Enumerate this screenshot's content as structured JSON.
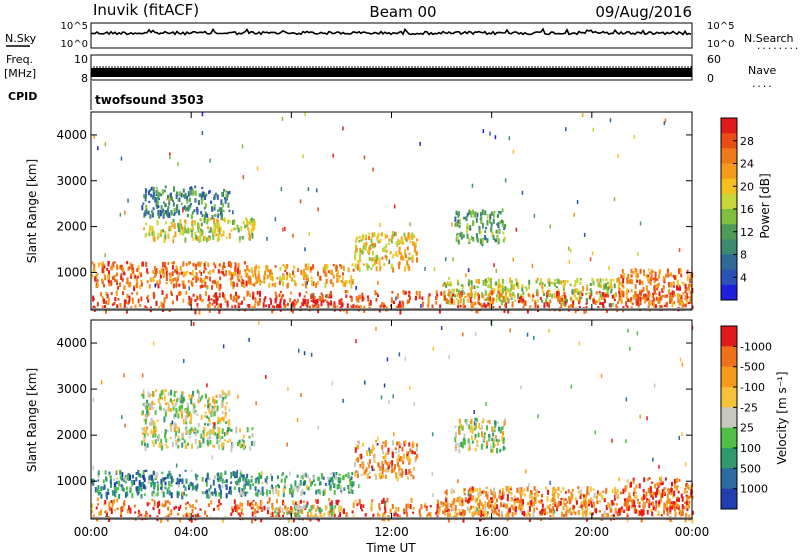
{
  "header": {
    "station": "Inuvik (fitACF)",
    "beam": "Beam 00",
    "date": "09/Aug/2016"
  },
  "status_panels": {
    "nsky_label": "N.Sky",
    "nsky_ticks": [
      "10^5",
      "10^0"
    ],
    "nsearch_label": "N.Search",
    "nsearch_ticks": [
      "10^5",
      "10^0"
    ],
    "freq_label": "Freq.",
    "freq_unit": "[MHz]",
    "freq_ticks": [
      "10",
      "8"
    ],
    "nave_label": "Nave",
    "nave_ticks": [
      "60",
      "0"
    ],
    "cpid_label": "CPID",
    "cpid_value": "twofsound 3503",
    "dotted_marker": "........",
    "dotted_marker_short": "...."
  },
  "chart_data": [
    {
      "type": "heatmap",
      "panel": "power",
      "ylabel": "Slant Range [km]",
      "yticks": [
        "1000",
        "2000",
        "3000",
        "4000"
      ],
      "ylim": [
        180,
        4500
      ],
      "xlim_hours": [
        0,
        24
      ],
      "colorbar_label": "Power [dB]",
      "colorbar_ticks": [
        "4",
        "8",
        "12",
        "16",
        "20",
        "24",
        "28"
      ],
      "colorbar_colors": [
        "#1f1fe0",
        "#2a52b8",
        "#2f6a96",
        "#3d8a70",
        "#4f9d55",
        "#7fbf3f",
        "#c8d63a",
        "#f3c01e",
        "#f59a1b",
        "#f07a18",
        "#e84d16",
        "#e31a1c"
      ],
      "scatter_regions": [
        {
          "t0": 0.0,
          "t1": 6.2,
          "r0": 700,
          "r1": 1250,
          "level": 9
        },
        {
          "t0": 6.2,
          "t1": 10.5,
          "r0": 750,
          "r1": 1200,
          "level": 8
        },
        {
          "t0": 2.0,
          "t1": 6.5,
          "r0": 1750,
          "r1": 2200,
          "level": 6
        },
        {
          "t0": 2.0,
          "t1": 5.5,
          "r0": 2250,
          "r1": 2900,
          "level": 3
        },
        {
          "t0": 10.5,
          "t1": 13.0,
          "r0": 1100,
          "r1": 1900,
          "level": 7
        },
        {
          "t0": 14.5,
          "t1": 16.5,
          "r0": 1700,
          "r1": 2400,
          "level": 4
        },
        {
          "t0": 14.0,
          "t1": 21.0,
          "r0": 400,
          "r1": 900,
          "level": 6
        },
        {
          "t0": 0.0,
          "t1": 24.0,
          "r0": 200,
          "r1": 620,
          "level": 10
        },
        {
          "t0": 7.0,
          "t1": 10.0,
          "r0": 250,
          "r1": 450,
          "level": 11
        },
        {
          "t0": 21.0,
          "t1": 24.0,
          "r0": 350,
          "r1": 1100,
          "level": 9
        }
      ]
    },
    {
      "type": "heatmap",
      "panel": "velocity",
      "ylabel": "Slant Range [km]",
      "yticks": [
        "1000",
        "2000",
        "3000",
        "4000"
      ],
      "ylim": [
        180,
        4500
      ],
      "xlim_hours": [
        0,
        24
      ],
      "xlabel": "Time UT",
      "xticks": [
        "00:00",
        "04:00",
        "08:00",
        "12:00",
        "16:00",
        "20:00",
        "00:00"
      ],
      "colorbar_label": "Velocity [m s⁻¹]",
      "colorbar_ticks": [
        "1000",
        "500",
        "100",
        "25",
        "-25",
        "-100",
        "-500",
        "-1000"
      ],
      "colorbar_colors": [
        "#1f3fb0",
        "#2d6aa0",
        "#2f9a6e",
        "#4fbf46",
        "#c8c8c0",
        "#f5c23a",
        "#f59a1b",
        "#f0701c",
        "#e31a1c"
      ],
      "scatter_regions": [
        {
          "t0": 0.0,
          "t1": 6.2,
          "r0": 700,
          "r1": 1250,
          "level": 2
        },
        {
          "t0": 6.2,
          "t1": 10.5,
          "r0": 750,
          "r1": 1200,
          "level": 3
        },
        {
          "t0": 2.0,
          "t1": 6.5,
          "r0": 1750,
          "r1": 2200,
          "level": 4
        },
        {
          "t0": 2.0,
          "t1": 5.5,
          "r0": 2250,
          "r1": 3000,
          "level": 4
        },
        {
          "t0": 10.5,
          "t1": 13.0,
          "r0": 1100,
          "r1": 1900,
          "level": 6
        },
        {
          "t0": 14.5,
          "t1": 16.5,
          "r0": 1700,
          "r1": 2400,
          "level": 4
        },
        {
          "t0": 14.0,
          "t1": 21.0,
          "r0": 300,
          "r1": 900,
          "level": 6
        },
        {
          "t0": 0.0,
          "t1": 24.0,
          "r0": 200,
          "r1": 650,
          "level": 7
        },
        {
          "t0": 7.0,
          "t1": 10.0,
          "r0": 250,
          "r1": 500,
          "level": 4
        },
        {
          "t0": 21.0,
          "t1": 24.0,
          "r0": 350,
          "r1": 1100,
          "level": 7
        }
      ]
    }
  ]
}
